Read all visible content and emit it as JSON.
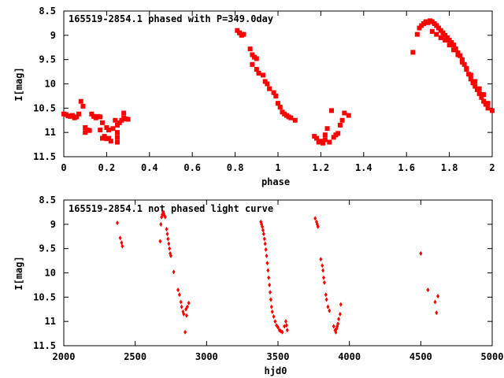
{
  "chart_data": [
    {
      "type": "scatter",
      "title": "165519-2854.1 phased with P=349.0day",
      "xlabel": "phase",
      "ylabel": "I[mag]",
      "xlim": [
        0,
        2
      ],
      "ylim": [
        11.5,
        8.5
      ],
      "x_reversed": false,
      "y_inverted": true,
      "xticks": [
        "0",
        "0.2",
        "0.4",
        "0.6",
        "0.8",
        "1",
        "1.2",
        "1.4",
        "1.6",
        "1.8",
        "2"
      ],
      "xtick_values": [
        0,
        0.2,
        0.4,
        0.6,
        0.8,
        1,
        1.2,
        1.4,
        1.6,
        1.8,
        2
      ],
      "yticks": [
        "8.5",
        "9",
        "9.5",
        "10",
        "10.5",
        "11",
        "11.5"
      ],
      "ytick_values": [
        8.5,
        9,
        9.5,
        10,
        10.5,
        11,
        11.5
      ],
      "color": "#ff0000",
      "marker": "square",
      "grid": false,
      "points": [
        [
          0.0,
          10.62
        ],
        [
          0.01,
          10.63
        ],
        [
          0.02,
          10.66
        ],
        [
          0.03,
          10.67
        ],
        [
          0.04,
          10.65
        ],
        [
          0.05,
          10.7
        ],
        [
          0.06,
          10.68
        ],
        [
          0.07,
          10.62
        ],
        [
          0.08,
          10.36
        ],
        [
          0.09,
          10.46
        ],
        [
          0.1,
          10.9
        ],
        [
          0.1,
          11.0
        ],
        [
          0.11,
          10.95
        ],
        [
          0.12,
          10.96
        ],
        [
          0.13,
          10.62
        ],
        [
          0.14,
          10.67
        ],
        [
          0.15,
          10.7
        ],
        [
          0.16,
          10.67
        ],
        [
          0.17,
          10.68
        ],
        [
          0.18,
          10.8
        ],
        [
          0.17,
          10.95
        ],
        [
          0.18,
          11.12
        ],
        [
          0.19,
          11.08
        ],
        [
          0.2,
          11.13
        ],
        [
          0.21,
          11.12
        ],
        [
          0.2,
          10.9
        ],
        [
          0.21,
          10.95
        ],
        [
          0.22,
          11.18
        ],
        [
          0.23,
          10.92
        ],
        [
          0.24,
          10.75
        ],
        [
          0.25,
          10.85
        ],
        [
          0.25,
          11.0
        ],
        [
          0.25,
          11.1
        ],
        [
          0.25,
          11.2
        ],
        [
          0.26,
          10.8
        ],
        [
          0.27,
          10.75
        ],
        [
          0.28,
          10.7
        ],
        [
          0.29,
          10.72
        ],
        [
          0.28,
          10.6
        ],
        [
          0.3,
          10.73
        ],
        [
          0.81,
          8.9
        ],
        [
          0.82,
          8.95
        ],
        [
          0.83,
          9.0
        ],
        [
          0.84,
          8.98
        ],
        [
          0.87,
          9.28
        ],
        [
          0.88,
          9.4
        ],
        [
          0.88,
          9.6
        ],
        [
          0.89,
          9.45
        ],
        [
          0.9,
          9.48
        ],
        [
          0.9,
          9.7
        ],
        [
          0.91,
          9.78
        ],
        [
          0.93,
          9.82
        ],
        [
          0.94,
          9.95
        ],
        [
          0.95,
          10.0
        ],
        [
          0.96,
          10.1
        ],
        [
          0.98,
          10.18
        ],
        [
          0.99,
          10.25
        ],
        [
          1.0,
          10.4
        ],
        [
          1.01,
          10.48
        ],
        [
          1.02,
          10.58
        ],
        [
          1.03,
          10.62
        ],
        [
          1.04,
          10.65
        ],
        [
          1.05,
          10.68
        ],
        [
          1.06,
          10.7
        ],
        [
          1.08,
          10.75
        ],
        [
          1.17,
          11.08
        ],
        [
          1.18,
          11.12
        ],
        [
          1.19,
          11.2
        ],
        [
          1.2,
          11.18
        ],
        [
          1.21,
          11.22
        ],
        [
          1.22,
          11.15
        ],
        [
          1.22,
          11.05
        ],
        [
          1.23,
          10.92
        ],
        [
          1.24,
          11.2
        ],
        [
          1.25,
          10.55
        ],
        [
          1.26,
          11.1
        ],
        [
          1.27,
          11.05
        ],
        [
          1.28,
          11.02
        ],
        [
          1.29,
          10.85
        ],
        [
          1.3,
          10.75
        ],
        [
          1.31,
          10.6
        ],
        [
          1.33,
          10.65
        ],
        [
          1.63,
          9.35
        ],
        [
          1.65,
          8.98
        ],
        [
          1.66,
          8.85
        ],
        [
          1.67,
          8.8
        ],
        [
          1.68,
          8.76
        ],
        [
          1.69,
          8.72
        ],
        [
          1.7,
          8.74
        ],
        [
          1.71,
          8.7
        ],
        [
          1.72,
          8.72
        ],
        [
          1.73,
          8.76
        ],
        [
          1.74,
          8.8
        ],
        [
          1.75,
          8.85
        ],
        [
          1.76,
          8.9
        ],
        [
          1.77,
          8.95
        ],
        [
          1.78,
          9.0
        ],
        [
          1.79,
          9.05
        ],
        [
          1.8,
          9.1
        ],
        [
          1.81,
          9.15
        ],
        [
          1.82,
          9.2
        ],
        [
          1.83,
          9.28
        ],
        [
          1.84,
          9.36
        ],
        [
          1.85,
          9.42
        ],
        [
          1.86,
          9.5
        ],
        [
          1.87,
          9.6
        ],
        [
          1.88,
          9.7
        ],
        [
          1.89,
          9.8
        ],
        [
          1.9,
          9.9
        ],
        [
          1.91,
          9.98
        ],
        [
          1.92,
          10.05
        ],
        [
          1.93,
          10.12
        ],
        [
          1.94,
          10.2
        ],
        [
          1.95,
          10.28
        ],
        [
          1.96,
          10.36
        ],
        [
          1.97,
          10.42
        ],
        [
          1.98,
          10.5
        ],
        [
          2.0,
          10.55
        ],
        [
          1.72,
          8.92
        ],
        [
          1.74,
          8.98
        ],
        [
          1.76,
          9.05
        ],
        [
          1.78,
          9.1
        ],
        [
          1.8,
          9.2
        ],
        [
          1.82,
          9.3
        ],
        [
          1.84,
          9.4
        ],
        [
          1.86,
          9.55
        ],
        [
          1.88,
          9.68
        ],
        [
          1.9,
          9.82
        ],
        [
          1.92,
          9.95
        ],
        [
          1.94,
          10.1
        ],
        [
          1.96,
          10.22
        ],
        [
          1.98,
          10.4
        ]
      ]
    },
    {
      "type": "scatter",
      "title": "165519-2854.1 not phased light curve",
      "xlabel": "hjd0",
      "ylabel": "I[mag]",
      "xlim": [
        2000,
        5000
      ],
      "ylim": [
        11.5,
        8.5
      ],
      "y_inverted": true,
      "xticks": [
        "2000",
        "2500",
        "3000",
        "3500",
        "4000",
        "4500",
        "5000"
      ],
      "xtick_values": [
        2000,
        2500,
        3000,
        3500,
        4000,
        4500,
        5000
      ],
      "yticks": [
        "8.5",
        "9",
        "9.5",
        "10",
        "10.5",
        "11",
        "11.5"
      ],
      "ytick_values": [
        8.5,
        9,
        9.5,
        10,
        10.5,
        11,
        11.5
      ],
      "color": "#ff0000",
      "marker": "diamond",
      "grid": false,
      "points": [
        [
          2375,
          8.97
        ],
        [
          2395,
          9.28
        ],
        [
          2405,
          9.38
        ],
        [
          2410,
          9.45
        ],
        [
          2675,
          9.35
        ],
        [
          2680,
          9.0
        ],
        [
          2685,
          8.85
        ],
        [
          2690,
          8.8
        ],
        [
          2695,
          8.75
        ],
        [
          2700,
          8.78
        ],
        [
          2705,
          8.82
        ],
        [
          2710,
          8.85
        ],
        [
          2720,
          9.1
        ],
        [
          2725,
          9.2
        ],
        [
          2730,
          9.3
        ],
        [
          2735,
          9.4
        ],
        [
          2740,
          9.5
        ],
        [
          2745,
          9.6
        ],
        [
          2750,
          9.65
        ],
        [
          2770,
          9.98
        ],
        [
          2800,
          10.35
        ],
        [
          2810,
          10.45
        ],
        [
          2820,
          10.6
        ],
        [
          2825,
          10.7
        ],
        [
          2835,
          10.8
        ],
        [
          2840,
          10.85
        ],
        [
          2850,
          11.22
        ],
        [
          2855,
          10.75
        ],
        [
          2860,
          10.88
        ],
        [
          2865,
          10.7
        ],
        [
          2875,
          10.62
        ],
        [
          3380,
          8.95
        ],
        [
          3385,
          9.0
        ],
        [
          3390,
          9.05
        ],
        [
          3395,
          9.12
        ],
        [
          3400,
          9.2
        ],
        [
          3405,
          9.3
        ],
        [
          3410,
          9.4
        ],
        [
          3415,
          9.52
        ],
        [
          3420,
          9.65
        ],
        [
          3425,
          9.8
        ],
        [
          3430,
          9.95
        ],
        [
          3435,
          10.1
        ],
        [
          3440,
          10.25
        ],
        [
          3445,
          10.4
        ],
        [
          3450,
          10.55
        ],
        [
          3455,
          10.7
        ],
        [
          3460,
          10.8
        ],
        [
          3470,
          10.9
        ],
        [
          3480,
          11.0
        ],
        [
          3490,
          11.08
        ],
        [
          3500,
          11.12
        ],
        [
          3510,
          11.18
        ],
        [
          3520,
          11.2
        ],
        [
          3530,
          11.22
        ],
        [
          3545,
          11.1
        ],
        [
          3555,
          11.0
        ],
        [
          3560,
          11.08
        ],
        [
          3565,
          11.18
        ],
        [
          3760,
          8.88
        ],
        [
          3770,
          8.95
        ],
        [
          3775,
          9.0
        ],
        [
          3780,
          9.05
        ],
        [
          3800,
          9.72
        ],
        [
          3810,
          9.85
        ],
        [
          3815,
          9.95
        ],
        [
          3820,
          10.1
        ],
        [
          3825,
          10.2
        ],
        [
          3835,
          10.45
        ],
        [
          3840,
          10.55
        ],
        [
          3850,
          10.7
        ],
        [
          3860,
          10.78
        ],
        [
          3890,
          11.1
        ],
        [
          3900,
          11.18
        ],
        [
          3905,
          11.22
        ],
        [
          3910,
          11.15
        ],
        [
          3915,
          11.1
        ],
        [
          3920,
          11.05
        ],
        [
          3925,
          10.95
        ],
        [
          3935,
          10.85
        ],
        [
          3940,
          10.65
        ],
        [
          4500,
          9.6
        ],
        [
          4550,
          10.35
        ],
        [
          4600,
          10.6
        ],
        [
          4610,
          10.82
        ],
        [
          4620,
          10.48
        ]
      ]
    }
  ]
}
